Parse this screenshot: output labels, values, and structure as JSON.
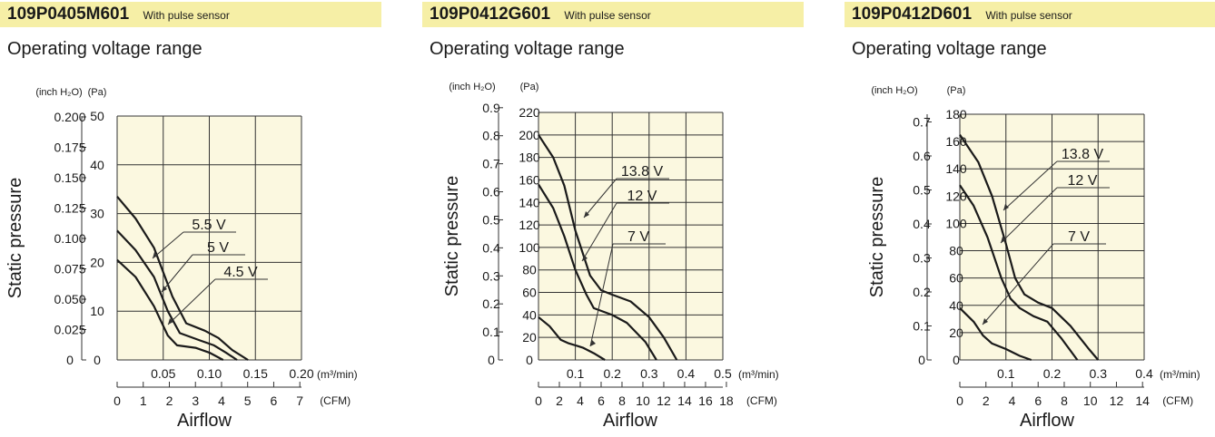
{
  "colors": {
    "header_bg": "#f6efa6",
    "plot_bg": "#fbf8e0",
    "curve": "#1a1a1a",
    "grid": "#333333"
  },
  "chart_data": [
    {
      "type": "line",
      "model": "109P0405M601",
      "sensor_note": "With pulse sensor",
      "subtitle": "Operating voltage range",
      "ylabel": "Static pressure",
      "xlabel": "Airflow",
      "y_inch_unit": "(inch H₂O)",
      "y_pa_unit": "(Pa)",
      "x_m3_unit": "(m³/min)",
      "x_cfm_unit": "(CFM)",
      "xlim": [
        0,
        0.2
      ],
      "ylim": [
        0,
        50
      ],
      "x_ticks": [
        "0.05",
        "0.10",
        "0.15",
        "0.20"
      ],
      "pa_ticks": [
        "0",
        "10",
        "20",
        "30",
        "40",
        "50"
      ],
      "inch_ticks": [
        "0",
        "0.025",
        "0.050",
        "0.075",
        "0.100",
        "0.125",
        "0.150",
        "0.175",
        "0.200"
      ],
      "cfm_ticks": [
        "0",
        "1",
        "2",
        "3",
        "4",
        "5",
        "6",
        "7"
      ],
      "series": [
        {
          "name": "5.5 V",
          "points": [
            [
              0,
              33.5
            ],
            [
              0.02,
              29
            ],
            [
              0.04,
              23
            ],
            [
              0.06,
              13
            ],
            [
              0.075,
              7.5
            ],
            [
              0.095,
              6
            ],
            [
              0.11,
              4.5
            ],
            [
              0.125,
              2
            ],
            [
              0.142,
              0
            ]
          ]
        },
        {
          "name": "5 V",
          "points": [
            [
              0,
              26.5
            ],
            [
              0.02,
              22.5
            ],
            [
              0.04,
              17
            ],
            [
              0.055,
              10
            ],
            [
              0.068,
              5.5
            ],
            [
              0.09,
              4
            ],
            [
              0.105,
              3
            ],
            [
              0.118,
              1.5
            ],
            [
              0.13,
              0
            ]
          ]
        },
        {
          "name": "4.5 V",
          "points": [
            [
              0,
              20.5
            ],
            [
              0.02,
              17
            ],
            [
              0.04,
              11
            ],
            [
              0.055,
              5
            ],
            [
              0.065,
              3
            ],
            [
              0.085,
              2.5
            ],
            [
              0.1,
              1.5
            ],
            [
              0.115,
              0
            ]
          ]
        }
      ]
    },
    {
      "type": "line",
      "model": "109P0412G601",
      "sensor_note": "With pulse sensor",
      "subtitle": "Operating voltage range",
      "ylabel": "Static pressure",
      "xlabel": "Airflow",
      "y_inch_unit": "(inch H₂O)",
      "y_pa_unit": "(Pa)",
      "x_m3_unit": "(m³/min)",
      "x_cfm_unit": "(CFM)",
      "xlim": [
        0,
        0.5
      ],
      "ylim": [
        0,
        220
      ],
      "x_ticks": [
        "0.1",
        "0.2",
        "0.3",
        "0.4",
        "0.5"
      ],
      "pa_ticks": [
        "0",
        "20",
        "40",
        "60",
        "80",
        "100",
        "120",
        "140",
        "160",
        "180",
        "200",
        "220"
      ],
      "inch_ticks": [
        "0",
        "0.1",
        "0.2",
        "0.3",
        "0.4",
        "0.5",
        "0.6",
        "0.7",
        "0.8",
        "0.9"
      ],
      "cfm_ticks": [
        "0",
        "2",
        "4",
        "6",
        "8",
        "10",
        "12",
        "14",
        "16",
        "18"
      ],
      "series": [
        {
          "name": "13.8 V",
          "points": [
            [
              0,
              200
            ],
            [
              0.04,
              180
            ],
            [
              0.07,
              155
            ],
            [
              0.1,
              115
            ],
            [
              0.14,
              75
            ],
            [
              0.17,
              62
            ],
            [
              0.2,
              58
            ],
            [
              0.25,
              52
            ],
            [
              0.3,
              38
            ],
            [
              0.34,
              20
            ],
            [
              0.375,
              0
            ]
          ]
        },
        {
          "name": "12 V",
          "points": [
            [
              0,
              156
            ],
            [
              0.04,
              135
            ],
            [
              0.07,
              110
            ],
            [
              0.1,
              80
            ],
            [
              0.13,
              58
            ],
            [
              0.15,
              46
            ],
            [
              0.2,
              40
            ],
            [
              0.24,
              33
            ],
            [
              0.29,
              16
            ],
            [
              0.32,
              0
            ]
          ]
        },
        {
          "name": "7 V",
          "points": [
            [
              0,
              38
            ],
            [
              0.03,
              30
            ],
            [
              0.06,
              18
            ],
            [
              0.08,
              15
            ],
            [
              0.12,
              11
            ],
            [
              0.15,
              6
            ],
            [
              0.18,
              0
            ]
          ]
        }
      ]
    },
    {
      "type": "line",
      "model": "109P0412D601",
      "sensor_note": "With pulse sensor",
      "subtitle": "Operating voltage range",
      "ylabel": "Static pressure",
      "xlabel": "Airflow",
      "y_inch_unit": "(inch H₂O)",
      "y_pa_unit": "(Pa)",
      "x_m3_unit": "(m³/min)",
      "x_cfm_unit": "(CFM)",
      "xlim": [
        0,
        0.4
      ],
      "ylim": [
        0,
        180
      ],
      "x_ticks": [
        "0.1",
        "0.2",
        "0.3",
        "0.4"
      ],
      "pa_ticks": [
        "0",
        "20",
        "40",
        "60",
        "80",
        "100",
        "120",
        "140",
        "160",
        "180"
      ],
      "inch_ticks": [
        "0",
        "0.1",
        "0.2",
        "0.3",
        "0.4",
        "0.5",
        "0.6",
        "0.7"
      ],
      "cfm_ticks": [
        "0",
        "2",
        "4",
        "6",
        "8",
        "10",
        "12",
        "14"
      ],
      "series": [
        {
          "name": "13.8 V",
          "points": [
            [
              0,
              165
            ],
            [
              0.04,
              145
            ],
            [
              0.07,
              120
            ],
            [
              0.1,
              85
            ],
            [
              0.12,
              60
            ],
            [
              0.14,
              48
            ],
            [
              0.17,
              42
            ],
            [
              0.2,
              38
            ],
            [
              0.24,
              25
            ],
            [
              0.28,
              8
            ],
            [
              0.3,
              0
            ]
          ]
        },
        {
          "name": "12 V",
          "points": [
            [
              0,
              128
            ],
            [
              0.03,
              113
            ],
            [
              0.06,
              90
            ],
            [
              0.09,
              60
            ],
            [
              0.11,
              45
            ],
            [
              0.13,
              38
            ],
            [
              0.16,
              32
            ],
            [
              0.19,
              28
            ],
            [
              0.22,
              16
            ],
            [
              0.255,
              0
            ]
          ]
        },
        {
          "name": "7 V",
          "points": [
            [
              0,
              38
            ],
            [
              0.03,
              28
            ],
            [
              0.05,
              18
            ],
            [
              0.07,
              12
            ],
            [
              0.1,
              8
            ],
            [
              0.13,
              3
            ],
            [
              0.155,
              0
            ]
          ]
        }
      ]
    }
  ]
}
